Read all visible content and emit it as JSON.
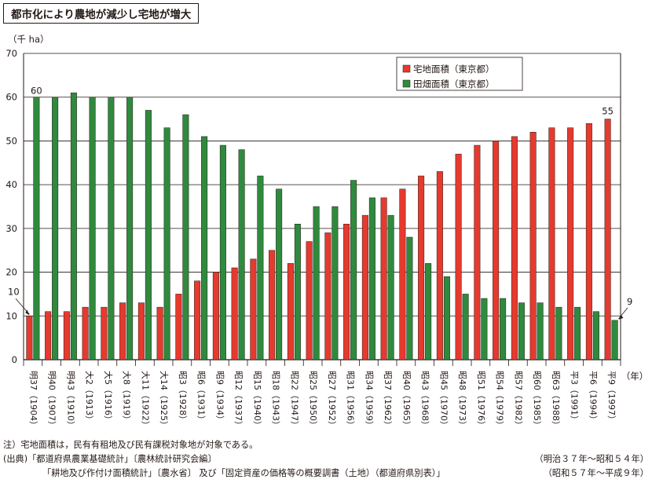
{
  "header": {
    "title": "都市化により農地が減少し宅地が増大"
  },
  "notes": {
    "note": "注）宅地面積は，民有有租地及び民有課税対象地が対象である。",
    "source_1_left": "(出典)「都道府県農業基礎統計」〔農林統計研究会編〕",
    "source_1_right": "（明治３７年〜昭和５４年）",
    "source_2_left": "「耕地及び作付け面積統計」〔農水省〕 及び「固定資産の価格等の概要調書（土地）（都道府県別表）」",
    "source_2_right": "（昭和５７年〜平成９年）"
  },
  "colors": {
    "residential": "#e63a2e",
    "farmland": "#2f8a3e",
    "gridline": "#231815"
  },
  "chart_data": {
    "type": "bar",
    "ylabel": "（千 ha）",
    "xlabel": "（年）",
    "ylim": [
      0,
      70
    ],
    "yticks": [
      0,
      10,
      20,
      30,
      40,
      50,
      60,
      70
    ],
    "grid": true,
    "legend_position": "top-right",
    "categories": [
      "明37（1904）",
      "明40（1907）",
      "明43（1910）",
      "大2（1913）",
      "大5（1916）",
      "大8（1919）",
      "大11（1922）",
      "大14（1925）",
      "昭3（1928）",
      "昭6（1931）",
      "昭9（1934）",
      "昭12（1937）",
      "昭15（1940）",
      "昭18（1943）",
      "昭22（1947）",
      "昭25（1950）",
      "昭27（1952）",
      "昭31（1956）",
      "昭34（1959）",
      "昭37（1962）",
      "昭40（1965）",
      "昭43（1968）",
      "昭45（1970）",
      "昭48（1973）",
      "昭51（1976）",
      "昭54（1979）",
      "昭57（1982）",
      "昭60（1985）",
      "昭63（1988）",
      "平3（1991）",
      "平6（1994）",
      "平9（1997）"
    ],
    "series": [
      {
        "name": "宅地面積（東京都）",
        "color": "#e63a2e",
        "values": [
          10,
          11,
          11,
          12,
          12,
          13,
          13,
          12,
          15,
          18,
          20,
          21,
          23,
          25,
          22,
          27,
          29,
          31,
          33,
          37,
          39,
          42,
          43,
          47,
          49,
          50,
          51,
          52,
          53,
          53,
          54,
          55
        ]
      },
      {
        "name": "田畑面積（東京都）",
        "color": "#2f8a3e",
        "values": [
          60,
          60,
          61,
          60,
          60,
          60,
          57,
          53,
          56,
          51,
          49,
          48,
          42,
          39,
          31,
          35,
          35,
          41,
          37,
          33,
          28,
          22,
          19,
          15,
          14,
          14,
          13,
          13,
          12,
          12,
          11,
          9
        ]
      }
    ],
    "annotations": [
      {
        "text": "60",
        "series": 1,
        "index": 0
      },
      {
        "text": "10",
        "series": 0,
        "index": 0
      },
      {
        "text": "55",
        "series": 0,
        "index": 31
      },
      {
        "text": "9",
        "series": 1,
        "index": 31
      }
    ]
  }
}
